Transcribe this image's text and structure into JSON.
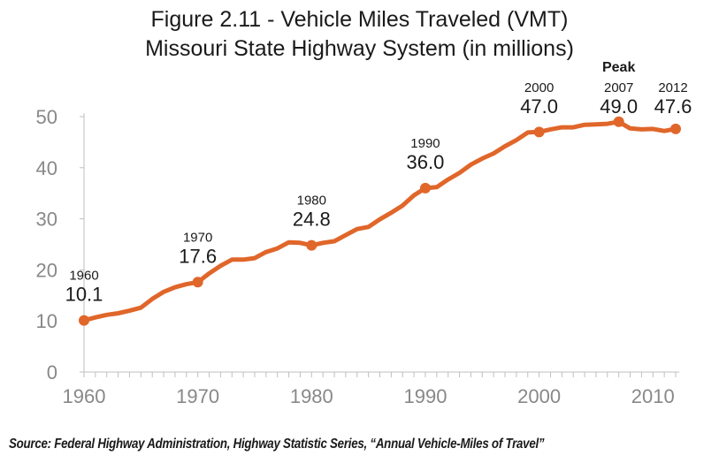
{
  "title": {
    "line1": "Figure 2.11 - Vehicle Miles Traveled (VMT)",
    "line2": "Missouri State Highway System (in millions)"
  },
  "source": "Source: Federal Highway Administration, Highway Statistic Series, “Annual Vehicle-Miles of Travel”",
  "colors": {
    "series": "#E0662A",
    "axis": "#bfbfbf",
    "tick": "#888888",
    "label": "#1a1a1a"
  },
  "chart_data": {
    "type": "line",
    "title": "Figure 2.11 - Vehicle Miles Traveled (VMT) Missouri State Highway System (in millions)",
    "xlabel": "",
    "ylabel": "",
    "xlim": [
      1960,
      2012
    ],
    "ylim": [
      0,
      50
    ],
    "x_ticks": [
      "1960",
      "1970",
      "1980",
      "1990",
      "2000",
      "2010"
    ],
    "y_ticks": [
      "0",
      "10",
      "20",
      "30",
      "40",
      "50"
    ],
    "grid": false,
    "series": [
      {
        "name": "",
        "x": [
          1960,
          1961,
          1962,
          1963,
          1964,
          1965,
          1966,
          1967,
          1968,
          1969,
          1970,
          1971,
          1972,
          1973,
          1974,
          1975,
          1976,
          1977,
          1978,
          1979,
          1980,
          1981,
          1982,
          1983,
          1984,
          1985,
          1986,
          1987,
          1988,
          1989,
          1990,
          1991,
          1992,
          1993,
          1994,
          1995,
          1996,
          1997,
          1998,
          1999,
          2000,
          2001,
          2002,
          2003,
          2004,
          2005,
          2006,
          2007,
          2008,
          2009,
          2010,
          2011,
          2012
        ],
        "y": [
          10.1,
          10.7,
          11.2,
          11.5,
          12.0,
          12.6,
          14.3,
          15.7,
          16.6,
          17.2,
          17.6,
          19.3,
          20.8,
          22.0,
          22.0,
          22.3,
          23.5,
          24.2,
          25.4,
          25.3,
          24.8,
          25.3,
          25.6,
          26.8,
          28.0,
          28.4,
          29.9,
          31.2,
          32.6,
          34.6,
          36.0,
          36.2,
          37.7,
          39.0,
          40.6,
          41.8,
          42.8,
          44.2,
          45.4,
          46.9,
          47.0,
          47.5,
          47.9,
          47.9,
          48.4,
          48.5,
          48.6,
          49.0,
          47.7,
          47.5,
          47.6,
          47.2,
          47.6
        ]
      }
    ],
    "annotations": [
      {
        "year": "1960",
        "value": "10.1",
        "x": 1960,
        "y": 10.1
      },
      {
        "year": "1970",
        "value": "17.6",
        "x": 1970,
        "y": 17.6
      },
      {
        "year": "1980",
        "value": "24.8",
        "x": 1980,
        "y": 24.8
      },
      {
        "year": "1990",
        "value": "36.0",
        "x": 1990,
        "y": 36.0
      },
      {
        "year": "2000",
        "value": "47.0",
        "x": 2000,
        "y": 47.0
      },
      {
        "year": "2007",
        "value": "49.0",
        "x": 2007,
        "y": 49.0,
        "note": "Peak"
      },
      {
        "year": "2012",
        "value": "47.6",
        "x": 2012,
        "y": 47.6
      }
    ]
  }
}
